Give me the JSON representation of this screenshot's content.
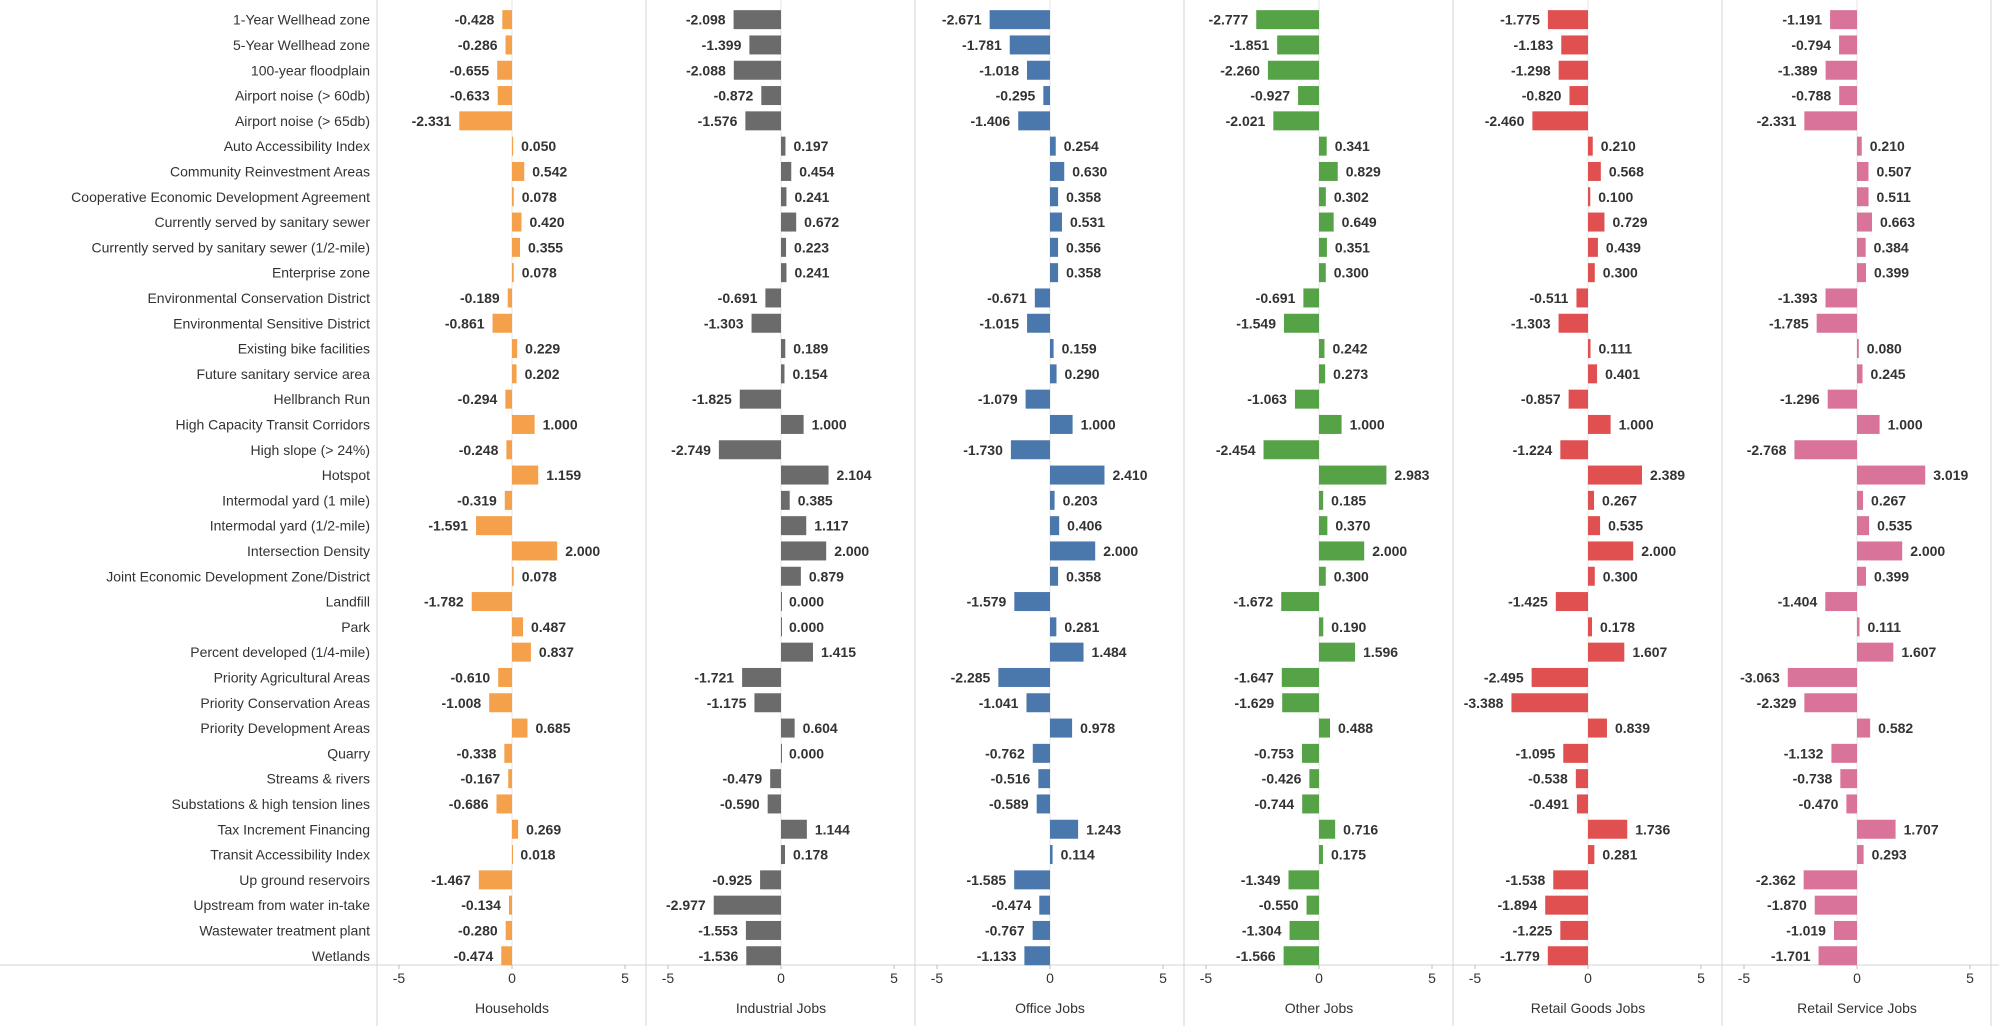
{
  "chart_data": {
    "type": "bar",
    "orientation": "horizontal",
    "categories": [
      "1-Year Wellhead zone",
      "5-Year Wellhead zone",
      "100-year floodplain",
      "Airport noise (> 60db)",
      "Airport noise (> 65db)",
      "Auto Accessibility Index",
      "Community Reinvestment Areas",
      "Cooperative Economic Development Agreement",
      "Currently served by sanitary sewer",
      "Currently served by sanitary sewer (1/2-mile)",
      "Enterprise zone",
      "Environmental Conservation District",
      "Environmental Sensitive District",
      "Existing bike facilities",
      "Future sanitary service area",
      "Hellbranch Run",
      "High Capacity Transit Corridors",
      "High slope (> 24%)",
      "Hotspot",
      "Intermodal yard (1 mile)",
      "Intermodal yard (1/2-mile)",
      "Intersection Density",
      "Joint Economic Development Zone/District",
      "Landfill",
      "Park",
      "Percent developed (1/4-mile)",
      "Priority Agricultural Areas",
      "Priority Conservation Areas",
      "Priority Development Areas",
      "Quarry",
      "Streams & rivers",
      "Substations & high tension lines",
      "Tax Increment Financing",
      "Transit Accessibility Index",
      "Up ground reservoirs",
      "Upstream from water in-take",
      "Wastewater treatment plant",
      "Wetlands"
    ],
    "series": [
      {
        "name": "Households",
        "color": "#f5a04a",
        "values": [
          -0.428,
          -0.286,
          -0.655,
          -0.633,
          -2.331,
          0.05,
          0.542,
          0.078,
          0.42,
          0.355,
          0.078,
          -0.189,
          -0.861,
          0.229,
          0.202,
          -0.294,
          1.0,
          -0.248,
          1.159,
          -0.319,
          -1.591,
          2.0,
          0.078,
          -1.782,
          0.487,
          0.837,
          -0.61,
          -1.008,
          0.685,
          -0.338,
          -0.167,
          -0.686,
          0.269,
          0.018,
          -1.467,
          -0.134,
          -0.28,
          -0.474
        ]
      },
      {
        "name": "Industrial Jobs",
        "color": "#6b6b6b",
        "values": [
          -2.098,
          -1.399,
          -2.088,
          -0.872,
          -1.576,
          0.197,
          0.454,
          0.241,
          0.672,
          0.223,
          0.241,
          -0.691,
          -1.303,
          0.189,
          0.154,
          -1.825,
          1.0,
          -2.749,
          2.104,
          0.385,
          1.117,
          2.0,
          0.879,
          0.0,
          0.0,
          1.415,
          -1.721,
          -1.175,
          0.604,
          0.0,
          -0.479,
          -0.59,
          1.144,
          0.178,
          -0.925,
          -2.977,
          -1.553,
          -1.536
        ]
      },
      {
        "name": "Office Jobs",
        "color": "#4a78ad",
        "values": [
          -2.671,
          -1.781,
          -1.018,
          -0.295,
          -1.406,
          0.254,
          0.63,
          0.358,
          0.531,
          0.356,
          0.358,
          -0.671,
          -1.015,
          0.159,
          0.29,
          -1.079,
          1.0,
          -1.73,
          2.41,
          0.203,
          0.406,
          2.0,
          0.358,
          -1.579,
          0.281,
          1.484,
          -2.285,
          -1.041,
          0.978,
          -0.762,
          -0.516,
          -0.589,
          1.243,
          0.114,
          -1.585,
          -0.474,
          -0.767,
          -1.133
        ]
      },
      {
        "name": "Other Jobs",
        "color": "#55a346",
        "values": [
          -2.777,
          -1.851,
          -2.26,
          -0.927,
          -2.021,
          0.341,
          0.829,
          0.302,
          0.649,
          0.351,
          0.3,
          -0.691,
          -1.549,
          0.242,
          0.273,
          -1.063,
          1.0,
          -2.454,
          2.983,
          0.185,
          0.37,
          2.0,
          0.3,
          -1.672,
          0.19,
          1.596,
          -1.647,
          -1.629,
          0.488,
          -0.753,
          -0.426,
          -0.744,
          0.716,
          0.175,
          -1.349,
          -0.55,
          -1.304,
          -1.566
        ]
      },
      {
        "name": "Retail Goods Jobs",
        "color": "#e05050",
        "values": [
          -1.775,
          -1.183,
          -1.298,
          -0.82,
          -2.46,
          0.21,
          0.568,
          0.1,
          0.729,
          0.439,
          0.3,
          -0.511,
          -1.303,
          0.111,
          0.401,
          -0.857,
          1.0,
          -1.224,
          2.389,
          0.267,
          0.535,
          2.0,
          0.3,
          -1.425,
          0.178,
          1.607,
          -2.495,
          -3.388,
          0.839,
          -1.095,
          -0.538,
          -0.491,
          1.736,
          0.281,
          -1.538,
          -1.894,
          -1.225,
          -1.779
        ]
      },
      {
        "name": "Retail Service Jobs",
        "color": "#d9739a",
        "values": [
          -1.191,
          -0.794,
          -1.389,
          -0.788,
          -2.331,
          0.21,
          0.507,
          0.511,
          0.663,
          0.384,
          0.399,
          -1.393,
          -1.785,
          0.08,
          0.245,
          -1.296,
          1.0,
          -2.768,
          3.019,
          0.267,
          0.535,
          2.0,
          0.399,
          -1.404,
          0.111,
          1.607,
          -3.063,
          -2.329,
          0.582,
          -1.132,
          -0.738,
          -0.47,
          1.707,
          0.293,
          -2.362,
          -1.87,
          -1.019,
          -1.701
        ]
      }
    ],
    "xlim": [
      -5,
      5
    ],
    "xticks": [
      -5,
      0,
      5
    ],
    "title": "",
    "grid": false
  }
}
